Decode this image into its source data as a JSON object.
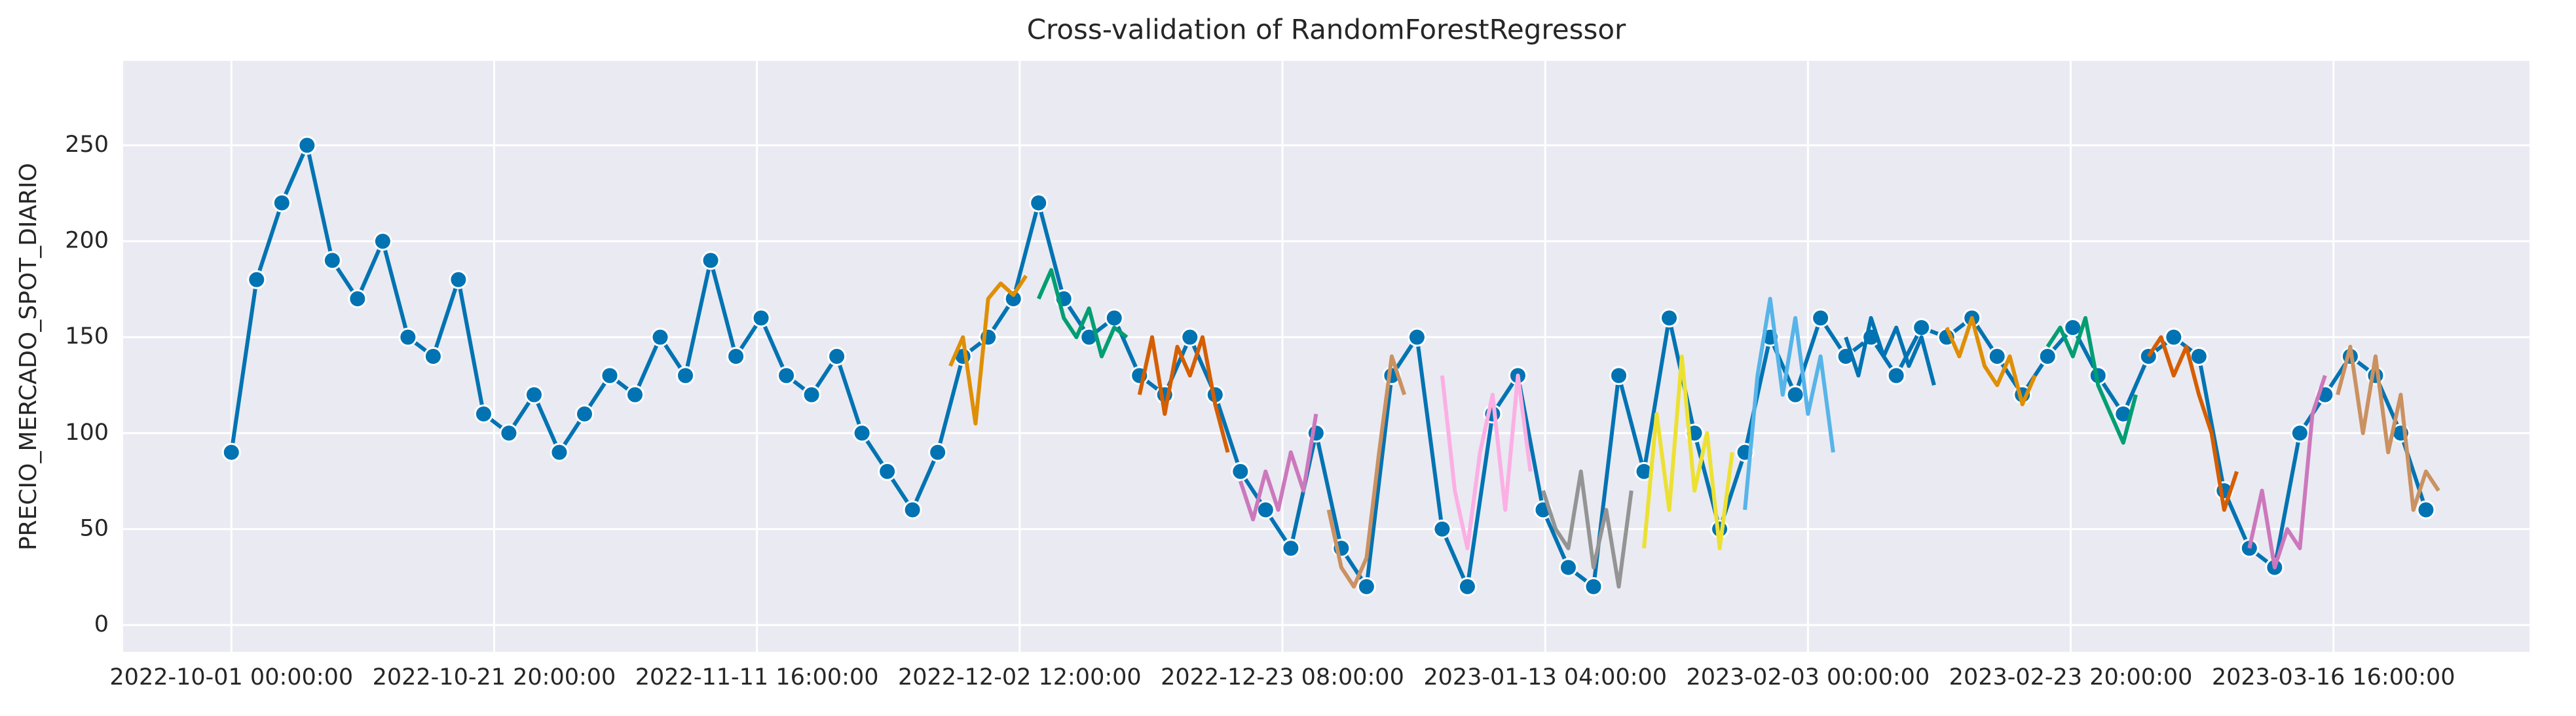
{
  "chart_data": {
    "type": "line",
    "title": "Cross-validation of RandomForestRegressor",
    "ylabel": "PRECIO_MERCADO_SPOT_DIARIO",
    "xlim": [
      "2022-09-22 10:00:00",
      "2023-04-01 05:00:00"
    ],
    "ylim": [
      -14,
      294
    ],
    "yticks": [
      0,
      50,
      100,
      150,
      200,
      250
    ],
    "xticks": [
      "2022-10-01 00:00:00",
      "2022-10-21 20:00:00",
      "2022-11-11 16:00:00",
      "2022-12-02 12:00:00",
      "2022-12-23 08:00:00",
      "2023-01-13 04:00:00",
      "2023-02-03 00:00:00",
      "2023-02-23 20:00:00",
      "2023-03-16 16:00:00"
    ],
    "grid": true,
    "background": "#eaeaf2",
    "series": [
      {
        "color": "#0173b2",
        "marker": true,
        "x": [
          "2022-10-01",
          "2022-10-03",
          "2022-10-05",
          "2022-10-07",
          "2022-10-09",
          "2022-10-11",
          "2022-10-13",
          "2022-10-15",
          "2022-10-17",
          "2022-10-19",
          "2022-10-21",
          "2022-10-23",
          "2022-10-25",
          "2022-10-27",
          "2022-10-29",
          "2022-10-31",
          "2022-11-02",
          "2022-11-04",
          "2022-11-06",
          "2022-11-08",
          "2022-11-10",
          "2022-11-12",
          "2022-11-14",
          "2022-11-16",
          "2022-11-18",
          "2022-11-20",
          "2022-11-22",
          "2022-11-24",
          "2022-11-26",
          "2022-11-28",
          "2022-11-30",
          "2022-12-02",
          "2022-12-04",
          "2022-12-06",
          "2022-12-08",
          "2022-12-10",
          "2022-12-12",
          "2022-12-14",
          "2022-12-16",
          "2022-12-18",
          "2022-12-20",
          "2022-12-22",
          "2022-12-24",
          "2022-12-26",
          "2022-12-28",
          "2022-12-30",
          "2023-01-01",
          "2023-01-03",
          "2023-01-05",
          "2023-01-07",
          "2023-01-09",
          "2023-01-11",
          "2023-01-13",
          "2023-01-15",
          "2023-01-17",
          "2023-01-19",
          "2023-01-21",
          "2023-01-23",
          "2023-01-25",
          "2023-01-27",
          "2023-01-29",
          "2023-01-31",
          "2023-02-02",
          "2023-02-04",
          "2023-02-06",
          "2023-02-08",
          "2023-02-10",
          "2023-02-12",
          "2023-02-14",
          "2023-02-16",
          "2023-02-18",
          "2023-02-20",
          "2023-02-22",
          "2023-02-24",
          "2023-02-26",
          "2023-02-28",
          "2023-03-02",
          "2023-03-04",
          "2023-03-06",
          "2023-03-08",
          "2023-03-10",
          "2023-03-12",
          "2023-03-14",
          "2023-03-16",
          "2023-03-18",
          "2023-03-20",
          "2023-03-22",
          "2023-03-24"
        ],
        "values": [
          90,
          180,
          220,
          250,
          190,
          170,
          200,
          150,
          140,
          180,
          110,
          100,
          120,
          90,
          110,
          130,
          120,
          150,
          130,
          190,
          140,
          160,
          130,
          120,
          140,
          100,
          80,
          60,
          90,
          140,
          150,
          170,
          220,
          170,
          150,
          160,
          130,
          120,
          150,
          120,
          80,
          60,
          40,
          100,
          40,
          20,
          130,
          150,
          50,
          20,
          110,
          130,
          60,
          30,
          20,
          130,
          80,
          160,
          100,
          50,
          90,
          150,
          120,
          160,
          140,
          150,
          130,
          155,
          150,
          160,
          140,
          120,
          140,
          155,
          130,
          110,
          140,
          150,
          140,
          70,
          40,
          30,
          100,
          120,
          140,
          130,
          100,
          60
        ]
      },
      {
        "color": "#de8f05",
        "x": [
          "2022-11-27",
          "2022-11-28",
          "2022-11-29",
          "2022-11-30",
          "2022-12-01",
          "2022-12-02",
          "2022-12-03"
        ],
        "values": [
          135,
          150,
          105,
          170,
          178,
          172,
          182
        ]
      },
      {
        "color": "#029e73",
        "x": [
          "2022-12-04",
          "2022-12-05",
          "2022-12-06",
          "2022-12-07",
          "2022-12-08",
          "2022-12-09",
          "2022-12-10",
          "2022-12-11"
        ],
        "values": [
          170,
          185,
          160,
          150,
          165,
          140,
          155,
          150
        ]
      },
      {
        "color": "#d55e00",
        "x": [
          "2022-12-12",
          "2022-12-13",
          "2022-12-14",
          "2022-12-15",
          "2022-12-16",
          "2022-12-17",
          "2022-12-18",
          "2022-12-19"
        ],
        "values": [
          120,
          150,
          110,
          145,
          130,
          150,
          115,
          90
        ]
      },
      {
        "color": "#cc78bc",
        "x": [
          "2022-12-20",
          "2022-12-21",
          "2022-12-22",
          "2022-12-23",
          "2022-12-24",
          "2022-12-25",
          "2022-12-26"
        ],
        "values": [
          75,
          55,
          80,
          60,
          90,
          70,
          110
        ]
      },
      {
        "color": "#ca9161",
        "x": [
          "2022-12-27",
          "2022-12-28",
          "2022-12-29",
          "2022-12-30",
          "2022-12-31",
          "2023-01-01",
          "2023-01-02"
        ],
        "values": [
          60,
          30,
          20,
          35,
          90,
          140,
          120
        ]
      },
      {
        "color": "#fbafe4",
        "x": [
          "2023-01-05",
          "2023-01-06",
          "2023-01-07",
          "2023-01-08",
          "2023-01-09",
          "2023-01-10",
          "2023-01-11",
          "2023-01-12"
        ],
        "values": [
          130,
          70,
          40,
          90,
          120,
          60,
          130,
          80
        ]
      },
      {
        "color": "#949494",
        "x": [
          "2023-01-13",
          "2023-01-14",
          "2023-01-15",
          "2023-01-16",
          "2023-01-17",
          "2023-01-18",
          "2023-01-19",
          "2023-01-20"
        ],
        "values": [
          70,
          50,
          40,
          80,
          30,
          60,
          20,
          70
        ]
      },
      {
        "color": "#ece133",
        "x": [
          "2023-01-21",
          "2023-01-22",
          "2023-01-23",
          "2023-01-24",
          "2023-01-25",
          "2023-01-26",
          "2023-01-27",
          "2023-01-28"
        ],
        "values": [
          40,
          110,
          60,
          140,
          70,
          100,
          40,
          90
        ]
      },
      {
        "color": "#56b4e9",
        "x": [
          "2023-01-29",
          "2023-01-30",
          "2023-01-31",
          "2023-02-01",
          "2023-02-02",
          "2023-02-03",
          "2023-02-04",
          "2023-02-05"
        ],
        "values": [
          60,
          130,
          170,
          120,
          160,
          110,
          140,
          90
        ]
      },
      {
        "color": "#0173b2",
        "x": [
          "2023-02-06",
          "2023-02-07",
          "2023-02-08",
          "2023-02-09",
          "2023-02-10",
          "2023-02-11",
          "2023-02-12",
          "2023-02-13"
        ],
        "values": [
          150,
          130,
          160,
          140,
          155,
          135,
          150,
          125
        ]
      },
      {
        "color": "#de8f05",
        "x": [
          "2023-02-14",
          "2023-02-15",
          "2023-02-16",
          "2023-02-17",
          "2023-02-18",
          "2023-02-19",
          "2023-02-20",
          "2023-02-21"
        ],
        "values": [
          155,
          140,
          160,
          135,
          125,
          140,
          115,
          130
        ]
      },
      {
        "color": "#029e73",
        "x": [
          "2023-02-22",
          "2023-02-23",
          "2023-02-24",
          "2023-02-25",
          "2023-02-26",
          "2023-02-27",
          "2023-02-28",
          "2023-03-01"
        ],
        "values": [
          145,
          155,
          140,
          160,
          125,
          110,
          95,
          120
        ]
      },
      {
        "color": "#d55e00",
        "x": [
          "2023-03-02",
          "2023-03-03",
          "2023-03-04",
          "2023-03-05",
          "2023-03-06",
          "2023-03-07",
          "2023-03-08",
          "2023-03-09"
        ],
        "values": [
          140,
          150,
          130,
          145,
          120,
          100,
          60,
          80
        ]
      },
      {
        "color": "#cc78bc",
        "x": [
          "2023-03-10",
          "2023-03-11",
          "2023-03-12",
          "2023-03-13",
          "2023-03-14",
          "2023-03-15",
          "2023-03-16"
        ],
        "values": [
          40,
          70,
          30,
          50,
          40,
          110,
          130
        ]
      },
      {
        "color": "#ca9161",
        "x": [
          "2023-03-17",
          "2023-03-18",
          "2023-03-19",
          "2023-03-20",
          "2023-03-21",
          "2023-03-22",
          "2023-03-23",
          "2023-03-24",
          "2023-03-25"
        ],
        "values": [
          120,
          145,
          100,
          140,
          90,
          120,
          60,
          80,
          70
        ]
      }
    ]
  }
}
